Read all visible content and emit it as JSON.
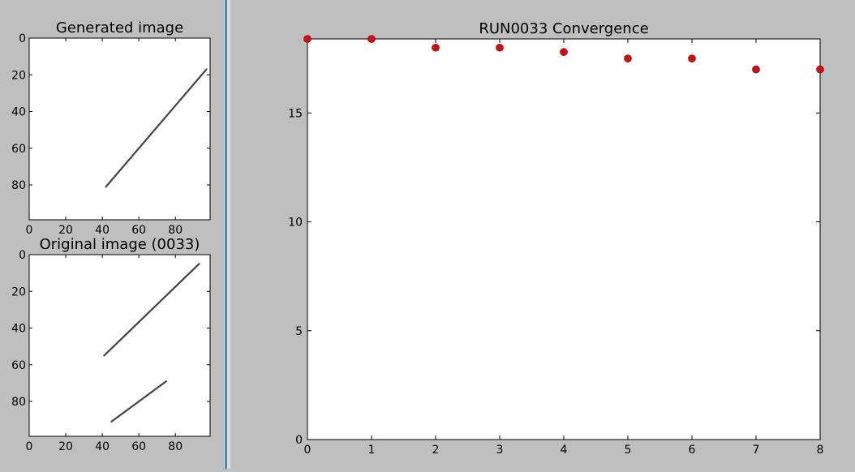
{
  "left": {
    "generated": {
      "title": "Generated image",
      "x_ticks": [
        0,
        20,
        40,
        60,
        80
      ],
      "y_ticks": [
        0,
        20,
        40,
        60,
        80
      ],
      "xlim": [
        0,
        99
      ],
      "ylim": [
        0,
        99
      ],
      "segments": [
        {
          "x1": 42,
          "y1": 81,
          "x2": 97,
          "y2": 17
        }
      ]
    },
    "original": {
      "title": "Original image (0033)",
      "x_ticks": [
        0,
        20,
        40,
        60,
        80
      ],
      "y_ticks": [
        0,
        20,
        40,
        60,
        80
      ],
      "xlim": [
        0,
        99
      ],
      "ylim": [
        0,
        99
      ],
      "segments": [
        {
          "x1": 41,
          "y1": 55,
          "x2": 93,
          "y2": 5
        },
        {
          "x1": 45,
          "y1": 91,
          "x2": 75,
          "y2": 69
        }
      ]
    }
  },
  "chart_data": {
    "type": "scatter",
    "title": "RUN0033 Convergence",
    "xlabel": "",
    "ylabel": "",
    "xlim": [
      0,
      8
    ],
    "ylim": [
      0,
      18.4
    ],
    "x_ticks": [
      0,
      1,
      2,
      3,
      4,
      5,
      6,
      7,
      8
    ],
    "y_ticks": [
      0,
      5,
      10,
      15
    ],
    "grid": false,
    "marker_color": "#cc1111",
    "x": [
      0,
      1,
      2,
      3,
      4,
      5,
      6,
      7,
      8
    ],
    "y": [
      18.4,
      18.4,
      18.0,
      18.0,
      17.8,
      17.5,
      17.5,
      17.0,
      17.0
    ]
  }
}
